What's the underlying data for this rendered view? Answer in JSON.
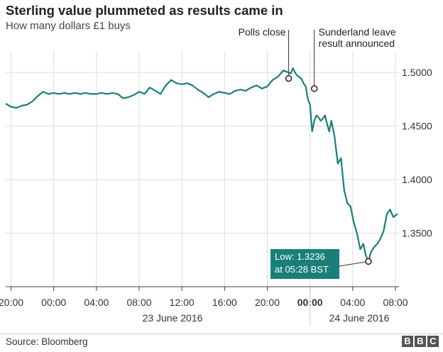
{
  "title": "Sterling value plummeted as results came in",
  "subtitle": "How many dollars £1 buys",
  "source": "Source: Bloomberg",
  "logo": [
    "B",
    "B",
    "C"
  ],
  "colors": {
    "line": "#1a7f7a",
    "grid": "#dddddd",
    "text": "#333333"
  },
  "chart_data": {
    "type": "line",
    "x_unit": "hours from 00:00 23 June 2016 (BST)",
    "xlim": [
      -4.5,
      32.2
    ],
    "ylim": [
      1.3,
      1.52
    ],
    "y_ticks": [
      "1.5000",
      "1.4500",
      "1.4000",
      "1.3500"
    ],
    "y_tick_values": [
      1.5,
      1.45,
      1.4,
      1.35
    ],
    "x_ticks": [
      "20:00",
      "00:00",
      "04:00",
      "08:00",
      "12:00",
      "16:00",
      "20:00",
      "00:00",
      "04:00",
      "08:00"
    ],
    "x_tick_values": [
      -4,
      0,
      4,
      8,
      12,
      16,
      20,
      24,
      28,
      32
    ],
    "date_labels": [
      "23 June 2016",
      "24 June 2016"
    ],
    "grid": true,
    "series": [
      {
        "x": [
          -4.5,
          -4,
          -3.5,
          -3,
          -2.5,
          -2,
          -1.5,
          -1,
          -0.5,
          0,
          0.5,
          1,
          1.5,
          2,
          2.5,
          3,
          3.5,
          4,
          4.5,
          5,
          5.5,
          6,
          6.5,
          7,
          7.5,
          8,
          8.5,
          9,
          9.5,
          10,
          10.5,
          11,
          11.5,
          12,
          12.5,
          13,
          13.5,
          14,
          14.5,
          15,
          15.5,
          16,
          16.5,
          17,
          17.5,
          18,
          18.5,
          19,
          19.5,
          20,
          20.5,
          21,
          21.5,
          22,
          22.2,
          22.4,
          22.6,
          22.8,
          23,
          23.2,
          23.4,
          23.6,
          23.8,
          24,
          24.2,
          24.4,
          24.6,
          24.8,
          25,
          25.2,
          25.4,
          25.6,
          25.8,
          26,
          26.3,
          26.6,
          26.9,
          27.2,
          27.5,
          27.8,
          28.1,
          28.4,
          28.7,
          29,
          29.2,
          29.47,
          29.7,
          30,
          30.3,
          30.6,
          30.9,
          31.2,
          31.5,
          31.8,
          32.2
        ],
        "values": [
          1.471,
          1.468,
          1.467,
          1.469,
          1.47,
          1.473,
          1.478,
          1.482,
          1.48,
          1.481,
          1.48,
          1.481,
          1.48,
          1.481,
          1.48,
          1.481,
          1.48,
          1.48,
          1.481,
          1.48,
          1.481,
          1.48,
          1.476,
          1.477,
          1.479,
          1.482,
          1.48,
          1.486,
          1.483,
          1.48,
          1.488,
          1.493,
          1.49,
          1.489,
          1.49,
          1.488,
          1.484,
          1.481,
          1.477,
          1.48,
          1.482,
          1.481,
          1.48,
          1.483,
          1.484,
          1.483,
          1.486,
          1.488,
          1.485,
          1.487,
          1.493,
          1.496,
          1.502,
          1.5,
          1.499,
          1.504,
          1.5,
          1.497,
          1.496,
          1.494,
          1.49,
          1.487,
          1.475,
          1.47,
          1.445,
          1.455,
          1.46,
          1.458,
          1.455,
          1.457,
          1.46,
          1.452,
          1.445,
          1.455,
          1.44,
          1.415,
          1.42,
          1.39,
          1.378,
          1.375,
          1.36,
          1.35,
          1.335,
          1.34,
          1.33,
          1.3236,
          1.332,
          1.337,
          1.34,
          1.345,
          1.352,
          1.368,
          1.372,
          1.365,
          1.368
        ]
      }
    ],
    "annotations": [
      {
        "label": "Polls close",
        "x": 22,
        "y": 1.4945
      },
      {
        "label": "Sunderland leave",
        "label2": "result announced",
        "x": 24.4,
        "y": 1.485
      },
      {
        "label": "Low: 1.3236",
        "label2": "at 05:28 BST",
        "x": 29.47,
        "y": 1.3236
      }
    ]
  }
}
